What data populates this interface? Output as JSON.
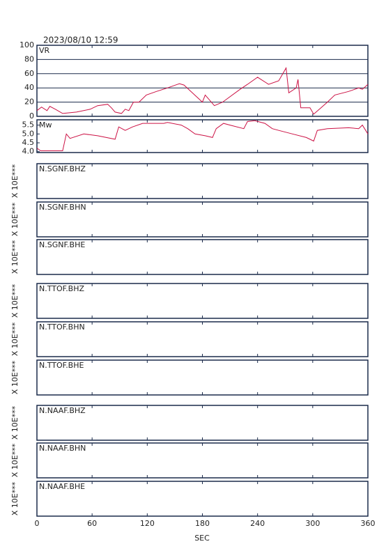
{
  "chart_data": {
    "type": "line",
    "title": "2023/08/10 12:59",
    "xlim": [
      0,
      360
    ],
    "xticks": [
      0,
      60,
      120,
      180,
      240,
      300,
      360
    ],
    "xlabel": "SEC",
    "panels": [
      {
        "label": "VR",
        "ylim": [
          0,
          100
        ],
        "yticks": [
          0,
          20,
          40,
          60,
          80,
          100
        ],
        "grid": true,
        "series": [
          {
            "color": "#cc1144",
            "x": [
              0,
              5,
              11,
              14,
              20,
              28,
              43,
              58,
              66,
              77,
              81,
              85,
              92,
              96,
              100,
              105,
              111,
              119,
              130,
              142,
              155,
              160,
              170,
              180,
              183,
              193,
              202,
              221,
              229,
              240,
              252,
              263,
              271,
              274,
              282,
              284,
              287,
              297,
              301,
              309,
              316,
              324,
              339,
              350,
              354,
              360
            ],
            "values": [
              8,
              13,
              8,
              14,
              10,
              4,
              6,
              10,
              15,
              17,
              12,
              6,
              4,
              10,
              8,
              20,
              20,
              30,
              35,
              40,
              46,
              44,
              32,
              20,
              30,
              15,
              20,
              38,
              45,
              55,
              45,
              50,
              68,
              33,
              40,
              52,
              12,
              12,
              3,
              12,
              20,
              30,
              35,
              40,
              38,
              45
            ]
          }
        ]
      },
      {
        "label": "Mw",
        "ylim": [
          3.95,
          5.8
        ],
        "yticks": [
          {
            "value": 4,
            "label": "4.0"
          },
          4.5,
          {
            "value": 5,
            "label": "5.0"
          },
          5.5
        ],
        "grid": false,
        "series": [
          {
            "color": "#cc1144",
            "x": [
              0,
              4,
              28,
              32,
              36,
              51,
              66,
              85,
              89,
              96,
              104,
              115,
              138,
              142,
              157,
              164,
              172,
              183,
              191,
              195,
              203,
              210,
              225,
              229,
              237,
              248,
              256,
              263,
              278,
              293,
              301,
              305,
              316,
              339,
              350,
              354,
              360
            ],
            "values": [
              4.2,
              4.05,
              4.05,
              5.0,
              4.75,
              5.0,
              4.9,
              4.7,
              5.4,
              5.2,
              5.4,
              5.6,
              5.6,
              5.65,
              5.5,
              5.3,
              5.0,
              4.9,
              4.8,
              5.3,
              5.6,
              5.5,
              5.3,
              5.7,
              5.75,
              5.6,
              5.3,
              5.2,
              5.0,
              4.8,
              4.6,
              5.2,
              5.3,
              5.35,
              5.3,
              5.5,
              5.0
            ]
          }
        ]
      },
      {
        "label": "N.SGNF.BHZ",
        "ylabel": "X 10E***"
      },
      {
        "label": "N.SGNF.BHN",
        "ylabel": "X 10E***"
      },
      {
        "label": "N.SGNF.BHE",
        "ylabel": "X 10E***"
      },
      {
        "label": "N.TTOF.BHZ",
        "ylabel": "X 10E***"
      },
      {
        "label": "N.TTOF.BHN",
        "ylabel": "X 10E***"
      },
      {
        "label": "N.TTOF.BHE",
        "ylabel": "X 10E***"
      },
      {
        "label": "N.NAAF.BHZ",
        "ylabel": "X 10E***"
      },
      {
        "label": "N.NAAF.BHN",
        "ylabel": "X 10E***"
      },
      {
        "label": "N.NAAF.BHE",
        "ylabel": "X 10E***"
      }
    ]
  }
}
